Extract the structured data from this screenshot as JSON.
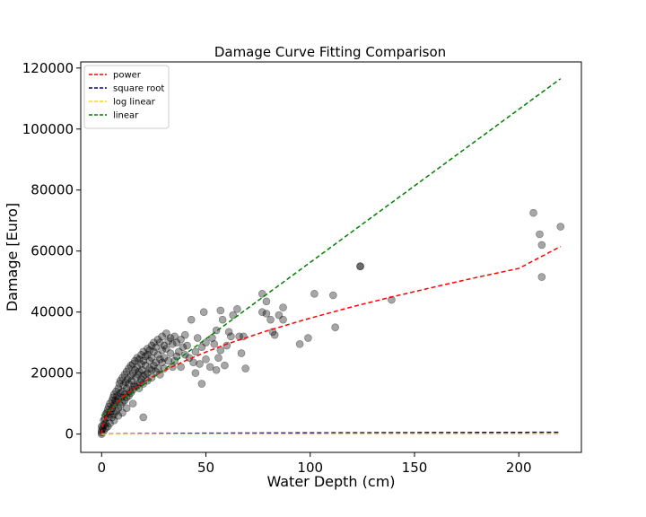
{
  "chart_data": {
    "type": "scatter",
    "title": "Damage Curve Fitting Comparison",
    "xlabel": "Water Depth (cm)",
    "ylabel": "Damage [Euro]",
    "xlim": [
      -10,
      230
    ],
    "ylim": [
      -6000,
      122000
    ],
    "xticks": [
      0,
      50,
      100,
      150,
      200
    ],
    "yticks": [
      0,
      20000,
      40000,
      60000,
      80000,
      100000,
      120000
    ],
    "grid": false,
    "legend_position": "top-left",
    "scatter": {
      "color": "#000000",
      "alpha": 0.35,
      "points": [
        [
          0,
          0
        ],
        [
          0,
          500
        ],
        [
          0,
          1200
        ],
        [
          0.5,
          2000
        ],
        [
          1,
          3000
        ],
        [
          1,
          4500
        ],
        [
          1.5,
          5000
        ],
        [
          2,
          6500
        ],
        [
          2,
          3500
        ],
        [
          2.5,
          7000
        ],
        [
          3,
          8000
        ],
        [
          3,
          5500
        ],
        [
          3.5,
          9000
        ],
        [
          4,
          10000
        ],
        [
          4,
          6500
        ],
        [
          4.5,
          7500
        ],
        [
          5,
          11000
        ],
        [
          5,
          8500
        ],
        [
          5.5,
          12000
        ],
        [
          6,
          9500
        ],
        [
          6,
          13000
        ],
        [
          6.5,
          11000
        ],
        [
          7,
          14000
        ],
        [
          7,
          10500
        ],
        [
          7.5,
          12500
        ],
        [
          8,
          15000
        ],
        [
          8,
          11500
        ],
        [
          8.5,
          16500
        ],
        [
          9,
          13500
        ],
        [
          9,
          17500
        ],
        [
          9.5,
          12000
        ],
        [
          10,
          18500
        ],
        [
          10,
          14000
        ],
        [
          10.5,
          16000
        ],
        [
          11,
          19500
        ],
        [
          11,
          13000
        ],
        [
          11.5,
          17000
        ],
        [
          12,
          20500
        ],
        [
          12,
          15000
        ],
        [
          12.5,
          18000
        ],
        [
          13,
          21500
        ],
        [
          13,
          16500
        ],
        [
          13.5,
          14000
        ],
        [
          14,
          22500
        ],
        [
          14,
          19000
        ],
        [
          14.5,
          17500
        ],
        [
          15,
          23000
        ],
        [
          15,
          20000
        ],
        [
          15.5,
          16000
        ],
        [
          16,
          24000
        ],
        [
          16,
          21000
        ],
        [
          16.5,
          18500
        ],
        [
          17,
          25000
        ],
        [
          17,
          22000
        ],
        [
          17.5,
          19500
        ],
        [
          18,
          24500
        ],
        [
          18,
          20500
        ],
        [
          18.5,
          17000
        ],
        [
          19,
          26000
        ],
        [
          19,
          23000
        ],
        [
          19.5,
          21000
        ],
        [
          20,
          27000
        ],
        [
          20,
          24000
        ],
        [
          20,
          19000
        ],
        [
          21,
          25500
        ],
        [
          21,
          22500
        ],
        [
          22,
          28000
        ],
        [
          22,
          26000
        ],
        [
          22,
          20000
        ],
        [
          23,
          27500
        ],
        [
          23,
          24000
        ],
        [
          24,
          29000
        ],
        [
          24,
          25000
        ],
        [
          24,
          21000
        ],
        [
          25,
          30000
        ],
        [
          25,
          27000
        ],
        [
          26,
          28500
        ],
        [
          26,
          23500
        ],
        [
          27,
          31000
        ],
        [
          27,
          26000
        ],
        [
          28,
          30000
        ],
        [
          28,
          24500
        ],
        [
          29,
          32000
        ],
        [
          29,
          27500
        ],
        [
          30,
          29000
        ],
        [
          30,
          25000
        ],
        [
          31,
          33000
        ],
        [
          31,
          28000
        ],
        [
          32,
          30500
        ],
        [
          33,
          26500
        ],
        [
          33,
          31500
        ],
        [
          34,
          29500
        ],
        [
          35,
          32000
        ],
        [
          35,
          24000
        ],
        [
          36,
          30000
        ],
        [
          37,
          27000
        ],
        [
          38,
          31000
        ],
        [
          38,
          22000
        ],
        [
          39,
          28500
        ],
        [
          40,
          32500
        ],
        [
          40,
          26000
        ],
        [
          41,
          29000
        ],
        [
          42,
          25000
        ],
        [
          43,
          37500
        ],
        [
          44,
          23500
        ],
        [
          45,
          27000
        ],
        [
          45,
          20000
        ],
        [
          46,
          31500
        ],
        [
          47,
          23000
        ],
        [
          48,
          16500
        ],
        [
          48,
          28500
        ],
        [
          49,
          40000
        ],
        [
          50,
          24500
        ],
        [
          50,
          30000
        ],
        [
          52,
          22000
        ],
        [
          53,
          31500
        ],
        [
          54,
          29500
        ],
        [
          55,
          34000
        ],
        [
          55,
          21000
        ],
        [
          56,
          25000
        ],
        [
          57,
          27500
        ],
        [
          57,
          40500
        ],
        [
          58,
          37500
        ],
        [
          59,
          22500
        ],
        [
          60,
          29000
        ],
        [
          61,
          33500
        ],
        [
          62,
          32000
        ],
        [
          63,
          39000
        ],
        [
          65,
          41000
        ],
        [
          66,
          32000
        ],
        [
          67,
          26500
        ],
        [
          68,
          32000
        ],
        [
          69,
          21500
        ],
        [
          77,
          46000
        ],
        [
          77,
          40000
        ],
        [
          79,
          43500
        ],
        [
          79,
          39500
        ],
        [
          81,
          37500
        ],
        [
          82,
          33500
        ],
        [
          83,
          32500
        ],
        [
          85,
          39000
        ],
        [
          87,
          41500
        ],
        [
          87,
          37500
        ],
        [
          95,
          29500
        ],
        [
          99,
          31500
        ],
        [
          102,
          46000
        ],
        [
          111,
          45500
        ],
        [
          112,
          35000
        ],
        [
          124,
          55000
        ],
        [
          124,
          55000
        ],
        [
          139,
          44000
        ],
        [
          207,
          72500
        ],
        [
          210,
          65500
        ],
        [
          211,
          62000
        ],
        [
          211,
          51500
        ],
        [
          220,
          68000
        ],
        [
          0,
          2500
        ],
        [
          1,
          1000
        ],
        [
          2,
          2000
        ],
        [
          3,
          2500
        ],
        [
          4,
          3500
        ],
        [
          5,
          5500
        ],
        [
          6,
          6500
        ],
        [
          7,
          7500
        ],
        [
          8,
          8500
        ],
        [
          9,
          9500
        ],
        [
          10,
          10500
        ],
        [
          11,
          11000
        ],
        [
          12,
          12000
        ],
        [
          13,
          12500
        ],
        [
          14,
          13500
        ],
        [
          15,
          14500
        ],
        [
          16,
          15500
        ],
        [
          17,
          16000
        ],
        [
          18,
          15000
        ],
        [
          19,
          18000
        ],
        [
          20,
          16500
        ],
        [
          21,
          19500
        ],
        [
          22,
          17500
        ],
        [
          23,
          21500
        ],
        [
          24,
          18500
        ],
        [
          25,
          22500
        ],
        [
          26,
          20500
        ],
        [
          27,
          21500
        ],
        [
          28,
          19500
        ],
        [
          29,
          23500
        ],
        [
          30,
          21500
        ],
        [
          32,
          24000
        ],
        [
          34,
          22000
        ],
        [
          36,
          25500
        ],
        [
          20,
          5500
        ],
        [
          15,
          10000
        ],
        [
          12,
          8500
        ],
        [
          10,
          7000
        ],
        [
          8,
          6000
        ],
        [
          6,
          4500
        ]
      ]
    },
    "series": [
      {
        "name": "power",
        "color": "#ff0000",
        "style": "dashed",
        "x": [
          0,
          0.3,
          1,
          2,
          3,
          5,
          7,
          10,
          15,
          20,
          25,
          30,
          40,
          50,
          60,
          80,
          100,
          120,
          140,
          160,
          180,
          200,
          220
        ],
        "y": [
          0,
          2100,
          3800,
          5400,
          6600,
          8500,
          10100,
          12000,
          14700,
          17000,
          19000,
          20800,
          24000,
          26900,
          29500,
          34000,
          38000,
          41700,
          45100,
          48300,
          51400,
          54300,
          61500
        ]
      },
      {
        "name": "square root",
        "color": "#00008b",
        "style": "dashed",
        "x": [
          0,
          1,
          5,
          10,
          20,
          50,
          100,
          150,
          200,
          220
        ],
        "y": [
          0,
          40,
          90,
          130,
          180,
          280,
          400,
          490,
          560,
          590
        ]
      },
      {
        "name": "log linear",
        "color": "#ffd700",
        "style": "dashed",
        "x": [
          0,
          1,
          5,
          10,
          20,
          50,
          100,
          150,
          200,
          220
        ],
        "y": [
          0,
          10,
          20,
          25,
          30,
          40,
          50,
          55,
          60,
          62
        ]
      },
      {
        "name": "linear",
        "color": "#008000",
        "style": "dashed",
        "x": [
          0,
          220
        ],
        "y": [
          6100,
          116500
        ]
      }
    ]
  }
}
